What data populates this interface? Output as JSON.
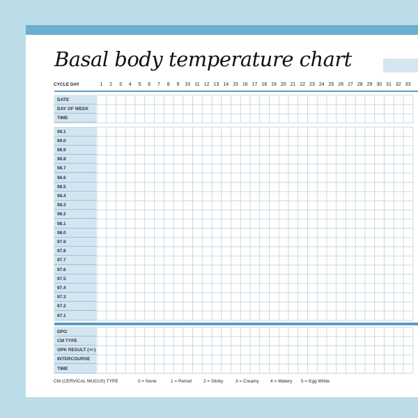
{
  "title": "Basal body temperature chart",
  "cycle_day_label": "CYCLE DAY",
  "days": [
    "1",
    "2",
    "3",
    "4",
    "5",
    "6",
    "7",
    "8",
    "9",
    "10",
    "11",
    "12",
    "13",
    "14",
    "15",
    "16",
    "17",
    "18",
    "19",
    "20",
    "21",
    "22",
    "23",
    "24",
    "25",
    "26",
    "27",
    "28",
    "29",
    "30",
    "31",
    "32",
    "33"
  ],
  "header_rows": [
    "DATE",
    "DAY OF WEEK",
    "TIME"
  ],
  "temperature_rows": [
    "99.1",
    "99.0",
    "98.9",
    "98.8",
    "98.7",
    "98.6",
    "98.5",
    "98.4",
    "98.3",
    "98.2",
    "98.1",
    "98.0",
    "97.9",
    "97.8",
    "97.7",
    "97.6",
    "97.5",
    "97.4",
    "97.3",
    "97.2",
    "97.1"
  ],
  "footer_rows": [
    "DPO",
    "CM TYPE",
    "OPK RESULT (+/-)",
    "INTERCOURSE",
    "TIME"
  ],
  "legend": {
    "title": "CM (CERVICAL MUCUS) TYPE",
    "items": [
      "0 = None",
      "1 = Period",
      "2 = Sticky",
      "3 = Creamy",
      "4 = Watery",
      "5 = Egg White"
    ]
  },
  "colors": {
    "background": "#bcdde8",
    "accent": "#6aafd0",
    "label_fill": "#d3e5f1",
    "grid_line": "#bfcfd9"
  }
}
